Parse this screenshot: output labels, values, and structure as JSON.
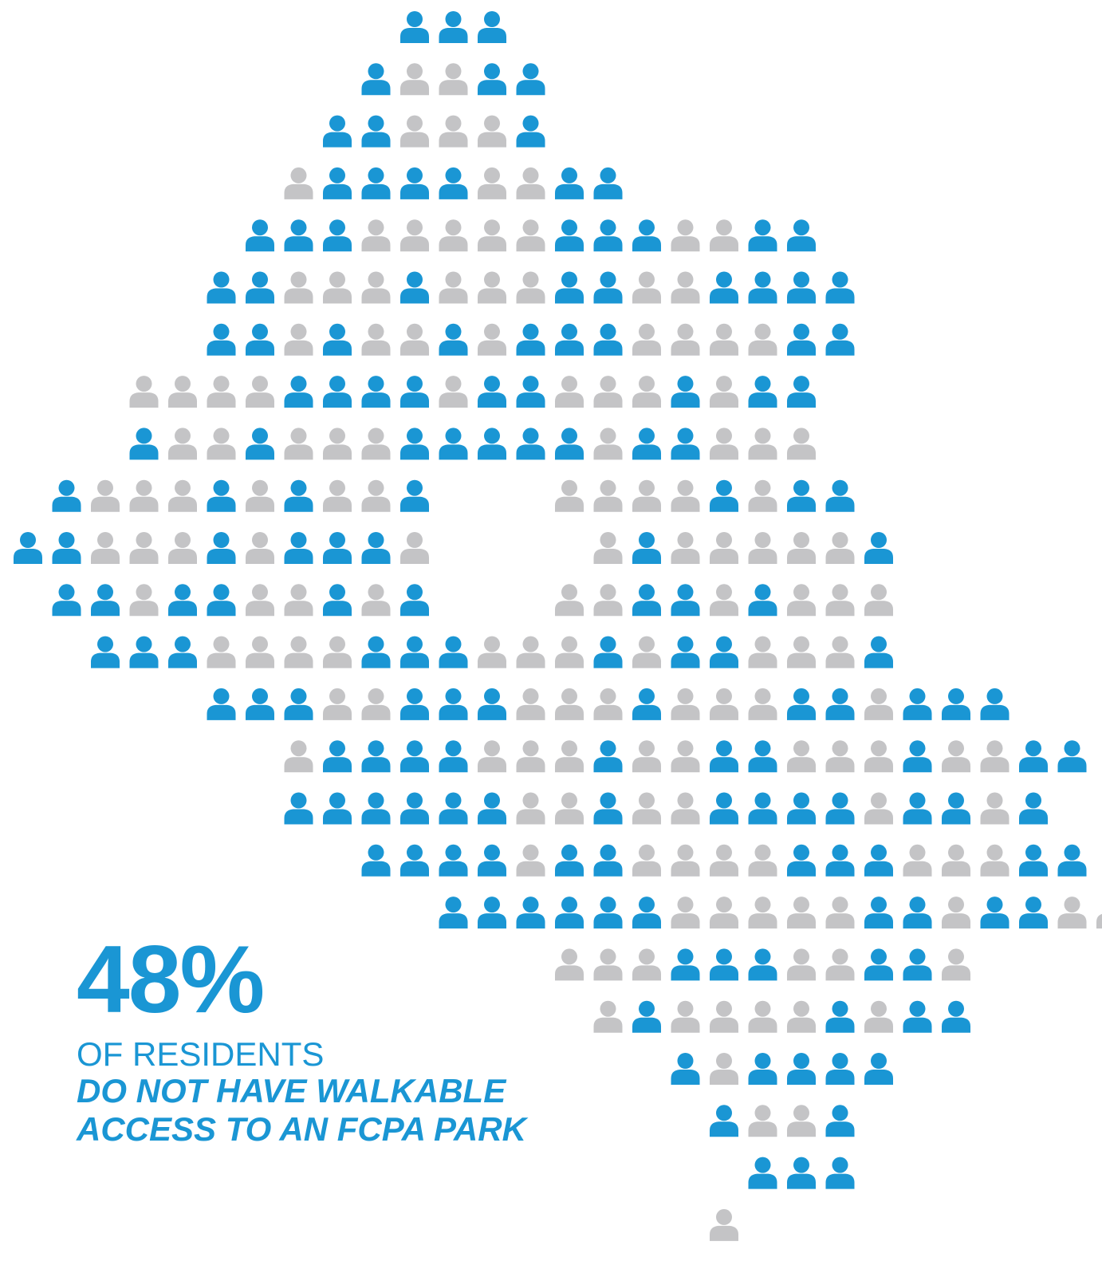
{
  "chart_data": {
    "type": "pictogram",
    "title": "",
    "value": "48%",
    "caption_line1": "OF RESIDENTS",
    "caption_line2": "DO NOT HAVE WALKABLE",
    "caption_line3": "ACCESS TO AN FCPA PARK",
    "legend": [
      {
        "name": "",
        "color": "#1a96d4",
        "meaning": "no walkable access"
      },
      {
        "name": "",
        "color": "#c4c4c6",
        "meaning": "walkable access"
      }
    ],
    "grid": [
      "..........BBB..........",
      ".........BGGBB.........",
      "........BBGGGB.........",
      ".......GBBBBGGBB.......",
      "......BBBGGGGGBBBGGBB..",
      ".....BBGGGBGGGBBGGBBBB.",
      ".....BBGBGGBGBBBGGGGBB.",
      "...GGGGBBBBGBBGGGBGBB..",
      "...BGGBGGGBBBBBGBBGGG..",
      ".BGGGBGBGGB...GGGGBGBB.",
      "BBGGGBGBBBG....GBGGGGGB",
      ".BBGBBGGBGB...GGBBGBGGG",
      "..BBBGGGGBBBGGGBGBBGGGB",
      ".....BBBGGBBBGGGBGGGBBGBBB",
      ".......GBBBBGGGBGGBBGGGBGGBB",
      ".......BBBBBBGGBGGBBBBGBBGB",
      ".........BBBBGBBGGGGBBBGGGBB",
      "...........BBBBBBGGGGGBBGBBGG",
      "..............GGGBBBGGBBG",
      "...............GBGGGGBGBB",
      ".................BGBBBB",
      "..................BGGB",
      "...................BBB",
      "..................G"
    ]
  }
}
